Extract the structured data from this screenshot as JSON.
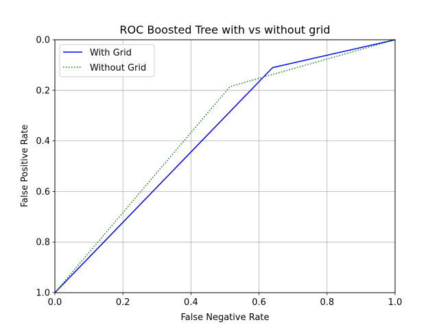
{
  "chart_data": {
    "type": "line",
    "title": "ROC Boosted Tree with vs without grid",
    "xlabel": "False Negative Rate",
    "ylabel": "False Positive Rate",
    "xlim": [
      0.0,
      1.0
    ],
    "ylim": [
      1.0,
      0.0
    ],
    "y_inverted": true,
    "xticks": [
      "0.0",
      "0.2",
      "0.4",
      "0.6",
      "0.8",
      "1.0"
    ],
    "yticks": [
      "0.0",
      "0.2",
      "0.4",
      "0.6",
      "0.8",
      "1.0"
    ],
    "grid": true,
    "legend_position": "top-left",
    "series": [
      {
        "name": "With Grid",
        "color": "#0000ff",
        "style": "solid",
        "x": [
          0.0,
          0.64,
          1.0
        ],
        "y": [
          1.0,
          0.11,
          0.0
        ]
      },
      {
        "name": "Without Grid",
        "color": "#008000",
        "style": "dotted",
        "x": [
          0.0,
          0.515,
          1.0
        ],
        "y": [
          1.0,
          0.185,
          0.0
        ]
      }
    ]
  }
}
